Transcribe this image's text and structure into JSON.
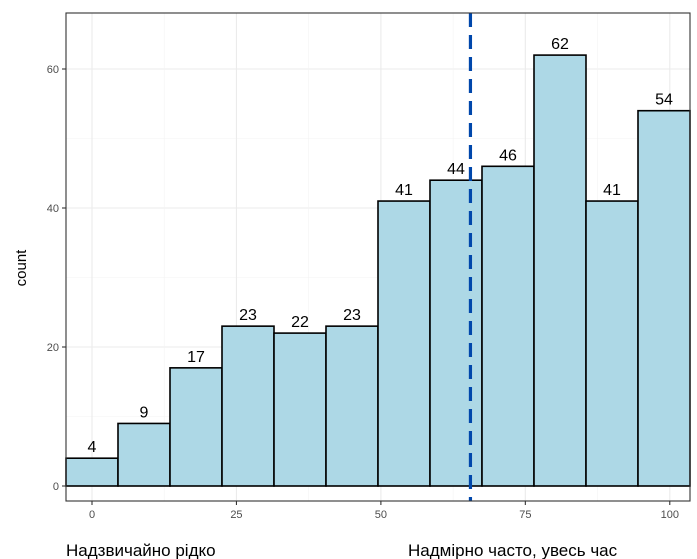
{
  "chart_data": {
    "type": "bar",
    "title": "",
    "xlabel": "",
    "ylabel": "count",
    "x_end_labels": {
      "left": "Надзвичайно рідко",
      "right": "Надмірно часто, увесь час"
    },
    "bins": [
      {
        "x": 0,
        "count": 4
      },
      {
        "x": 9,
        "count": 9
      },
      {
        "x": 18,
        "count": 17
      },
      {
        "x": 27,
        "count": 23
      },
      {
        "x": 36,
        "count": 22
      },
      {
        "x": 45,
        "count": 23
      },
      {
        "x": 54,
        "count": 41
      },
      {
        "x": 63,
        "count": 44
      },
      {
        "x": 72,
        "count": 46
      },
      {
        "x": 81,
        "count": 62
      },
      {
        "x": 90,
        "count": 41
      },
      {
        "x": 99,
        "count": 54
      }
    ],
    "bin_width": 9,
    "mean_line_x": 65.5,
    "xlim": [
      -4.5,
      103.5
    ],
    "ylim": [
      0,
      67
    ],
    "x_ticks": [
      0,
      25,
      50,
      75,
      100
    ],
    "y_ticks": [
      0,
      20,
      40,
      60
    ],
    "grid": true,
    "bar_fill": "#add8e6",
    "bar_stroke": "#000000",
    "mean_line_color": "#0047ab"
  }
}
